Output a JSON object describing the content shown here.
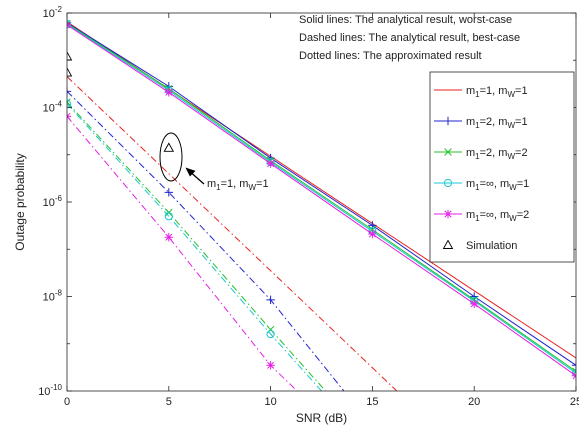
{
  "chart_data": {
    "type": "line",
    "xlabel": "SNR (dB)",
    "ylabel": "Outage probability",
    "xlim": [
      0,
      25
    ],
    "ylim": [
      1e-10,
      0.01
    ],
    "yscale": "log",
    "grid": false,
    "x_ticks": [
      "0",
      "5",
      "10",
      "15",
      "20",
      "25"
    ],
    "y_ticks": [
      {
        "base": "10",
        "exp": "-10",
        "value": 1e-10
      },
      {
        "base": "10",
        "exp": "-8",
        "value": 1e-08
      },
      {
        "base": "10",
        "exp": "-6",
        "value": 1e-06
      },
      {
        "base": "10",
        "exp": "-4",
        "value": 0.0001
      },
      {
        "base": "10",
        "exp": "-2",
        "value": 0.01
      }
    ],
    "notes": [
      "Solid lines: The analytical result, worst-case",
      "Dashed lines: The analytical result, best-case",
      "Dotted lines: The approximated result"
    ],
    "legend_position": "top-right",
    "legend": [
      {
        "a": "m",
        "b": "1",
        "c": "=1, m",
        "d": "W",
        "e": "=1",
        "color": "#e8231f",
        "marker": "none"
      },
      {
        "a": "m",
        "b": "1",
        "c": "=2, m",
        "d": "W",
        "e": "=1",
        "color": "#1f24cf",
        "marker": "plus"
      },
      {
        "a": "m",
        "b": "1",
        "c": "=2, m",
        "d": "W",
        "e": "=2",
        "color": "#22c02a",
        "marker": "x"
      },
      {
        "a": "m",
        "b": "1",
        "c": "=∞, m",
        "d": "W",
        "e": "=1",
        "color": "#17c8cf",
        "marker": "circle"
      },
      {
        "a": "m",
        "b": "1",
        "c": "=∞, m",
        "d": "W",
        "e": "=2",
        "color": "#e620e6",
        "marker": "star"
      },
      {
        "a": "Simulation",
        "b": "",
        "c": "",
        "d": "",
        "e": "",
        "color": "#000000",
        "marker": "triangle"
      }
    ],
    "annotation": {
      "a": "m",
      "b": "1",
      "c": "=1, m",
      "d": "W",
      "e": "=1"
    },
    "series": [
      {
        "case": "worst-case",
        "style": "solid",
        "color": "#e8231f",
        "marker": "none",
        "x": [
          0,
          25
        ],
        "y": [
          0.0065,
          5e-10
        ]
      },
      {
        "case": "worst-case",
        "style": "solid",
        "color": "#1f24cf",
        "marker": "plus",
        "x": [
          0,
          5,
          10,
          15,
          20,
          25
        ],
        "y": [
          0.0062,
          0.00028,
          8.5e-06,
          3.2e-07,
          1e-08,
          3.5e-10
        ]
      },
      {
        "case": "worst-case",
        "style": "solid",
        "color": "#22c02a",
        "marker": "x",
        "x": [
          0,
          5,
          10,
          15,
          20,
          25
        ],
        "y": [
          0.006,
          0.00025,
          7.5e-06,
          2.6e-07,
          8.5e-09,
          2.6e-10
        ]
      },
      {
        "case": "worst-case",
        "style": "solid",
        "color": "#17c8cf",
        "marker": "circle",
        "x": [
          0,
          5,
          10,
          15,
          20,
          25
        ],
        "y": [
          0.0058,
          0.00023,
          7e-06,
          2.4e-07,
          8e-09,
          2.4e-10
        ]
      },
      {
        "case": "worst-case",
        "style": "solid",
        "color": "#e620e6",
        "marker": "star",
        "x": [
          0,
          5,
          10,
          15,
          20,
          25
        ],
        "y": [
          0.0056,
          0.00021,
          6.5e-06,
          2.1e-07,
          7e-09,
          2.1e-10
        ]
      },
      {
        "case": "best-case",
        "style": "dashdot",
        "color": "#e8231f",
        "marker": "none",
        "x": [
          0,
          16.2
        ],
        "y": [
          0.00045,
          1e-10
        ]
      },
      {
        "case": "best-case",
        "style": "dashdot",
        "color": "#1f24cf",
        "marker": "plus",
        "x": [
          0,
          5,
          10,
          13.6
        ],
        "y": [
          0.00022,
          1.6e-06,
          8.5e-09,
          1e-10
        ]
      },
      {
        "case": "best-case",
        "style": "dashdot",
        "color": "#22c02a",
        "marker": "x",
        "x": [
          0,
          5,
          10,
          12.7
        ],
        "y": [
          0.00013,
          6e-07,
          2e-09,
          1e-10
        ]
      },
      {
        "case": "best-case",
        "style": "dashdot",
        "color": "#17c8cf",
        "marker": "circle",
        "x": [
          0,
          5,
          10,
          12.5
        ],
        "y": [
          0.00012,
          5e-07,
          1.6e-09,
          1e-10
        ]
      },
      {
        "case": "best-case",
        "style": "dashdot",
        "color": "#e620e6",
        "marker": "star",
        "x": [
          0,
          5,
          10,
          11.3
        ],
        "y": [
          6.5e-05,
          1.8e-07,
          3.5e-10,
          1e-10
        ]
      }
    ],
    "simulation": {
      "x": [
        0,
        0,
        5
      ],
      "y": [
        0.0012,
        0.00055,
        1.4e-05
      ]
    }
  }
}
